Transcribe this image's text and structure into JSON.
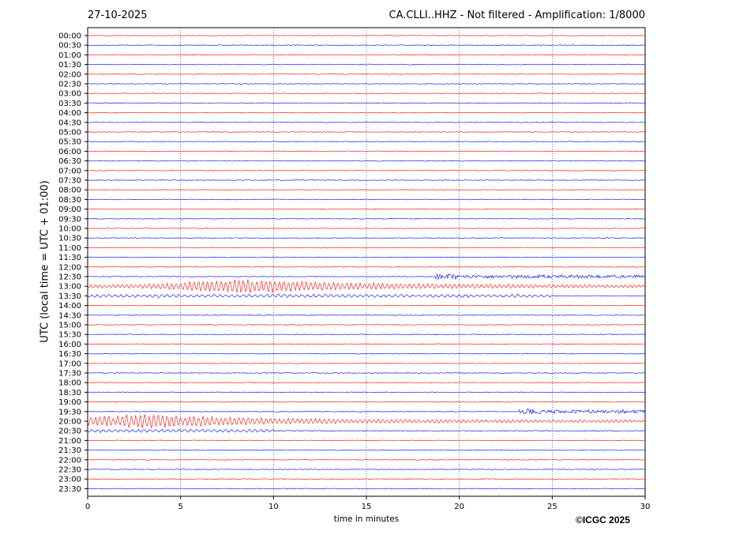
{
  "header": {
    "date": "27-10-2025",
    "title": "CA.CLLI..HHZ - Not filtered - Amplification: 1/8000"
  },
  "footer": {
    "copyright": "©ICGC 2025"
  },
  "chart_data": {
    "type": "line",
    "title": "CA.CLLI..HHZ - Not filtered - Amplification: 1/8000",
    "xlabel": "time in minutes",
    "ylabel": "UTC (local time = UTC + 01:00)",
    "xlim": [
      0,
      30
    ],
    "x_ticks": [
      0,
      5,
      10,
      15,
      20,
      25,
      30
    ],
    "grid": "vertical dotted at x ticks",
    "row_labels": [
      "00:00",
      "00:30",
      "01:00",
      "01:30",
      "02:00",
      "02:30",
      "03:00",
      "03:30",
      "04:00",
      "04:30",
      "05:00",
      "05:30",
      "06:00",
      "06:30",
      "07:00",
      "07:30",
      "08:00",
      "08:30",
      "09:00",
      "09:30",
      "10:00",
      "10:30",
      "11:00",
      "11:30",
      "12:00",
      "12:30",
      "13:00",
      "13:30",
      "14:00",
      "14:30",
      "15:00",
      "15:30",
      "16:00",
      "16:30",
      "17:00",
      "17:30",
      "18:00",
      "18:30",
      "19:00",
      "19:30",
      "20:00",
      "20:30",
      "21:00",
      "21:30",
      "22:00",
      "22:30",
      "23:00",
      "23:30"
    ],
    "trace_colors": [
      "#ff0000",
      "#0000ff"
    ],
    "events": [
      {
        "row": "12:30",
        "start_min": 18.7,
        "end_min": 30,
        "level": "moderate"
      },
      {
        "row": "13:00",
        "start_min": 0,
        "end_min": 30,
        "level": "strong",
        "peak_min": 7.7
      },
      {
        "row": "13:30",
        "start_min": 0,
        "end_min": 25,
        "level": "weak"
      },
      {
        "row": "19:30",
        "start_min": 23.2,
        "end_min": 30,
        "level": "moderate"
      },
      {
        "row": "20:00",
        "start_min": 0,
        "end_min": 30,
        "level": "strong",
        "peak_min": 2.8
      },
      {
        "row": "20:30",
        "start_min": 0,
        "end_min": 10,
        "level": "weak"
      }
    ]
  }
}
